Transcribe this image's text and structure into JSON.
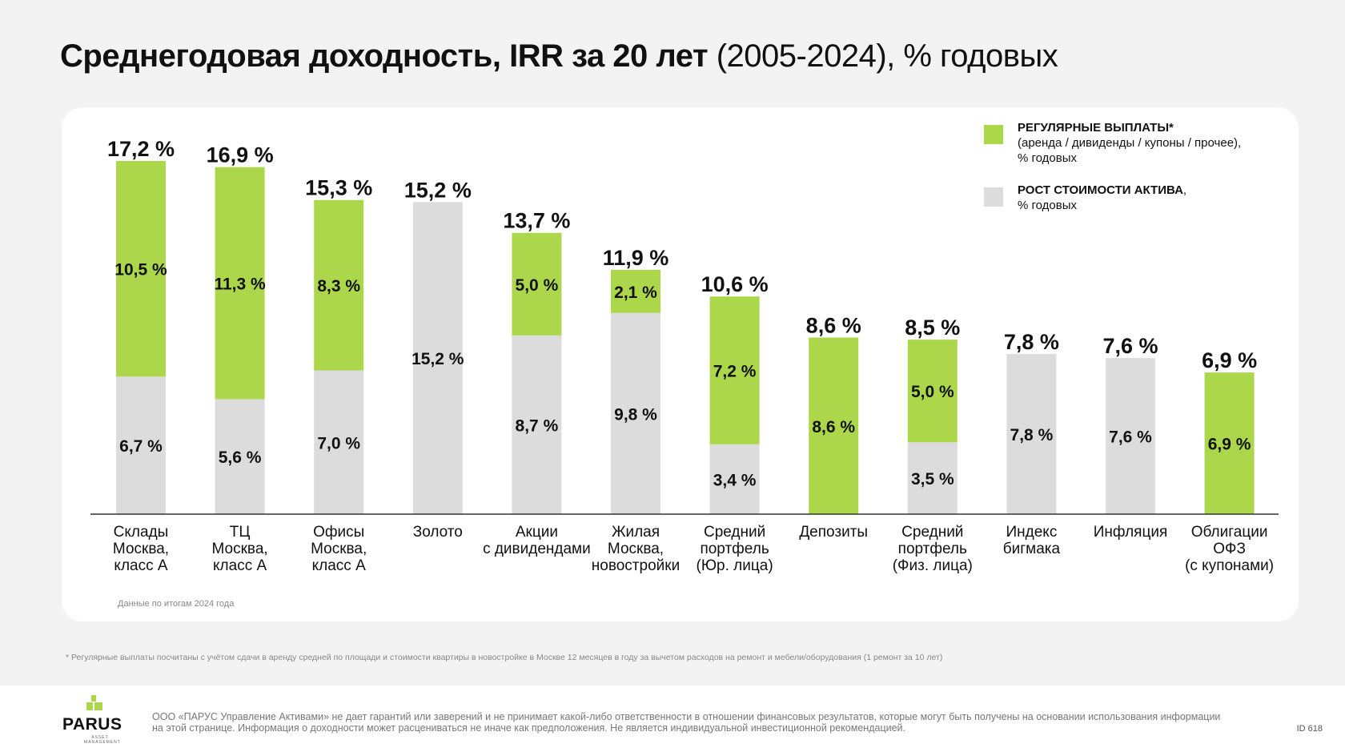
{
  "title": {
    "bold": "Среднегодовая доходность, IRR за 20 лет",
    "light": " (2005-2024), % годовых"
  },
  "legend": {
    "green_title": "РЕГУЛЯРНЫЕ ВЫПЛАТЫ*",
    "green_desc1": "(аренда / дивиденды / купоны / прочее),",
    "green_desc2": "% годовых",
    "gray_title": "РОСТ СТОИМОСТИ АКТИВА",
    "gray_suffix": ",",
    "gray_desc": "% годовых"
  },
  "colors": {
    "green": "#acd74b",
    "gray": "#dcdcdc",
    "axis": "#333333"
  },
  "source_note": "Данные по итогам 2024 года",
  "footnote": "* Регулярные выплаты посчитаны с учётом сдачи в аренду средней по площади и стоимости квартиры в новостройке в Москве 12 месяцев в году за вычетом расходов на ремонт и мебели/оборудования (1 ремонт за 10 лет)",
  "footer": {
    "logo_word": "PARUS",
    "logo_sub1": "ASSET",
    "logo_sub2": "MANAGEMENT",
    "disclaimer": "ООО «ПАРУС Управление Активами» не дает гарантий или заверений и не принимает какой-либо ответственности в отношении финансовых результатов, которые могут быть получены на основании использования информации на этой странице. Информация о доходности может расцениваться не иначе как предположения. Не является индивидуальной инвестиционной рекомендацией.",
    "page_id": "ID 618"
  },
  "chart_data": {
    "type": "bar",
    "stacked": true,
    "title": "Среднегодовая доходность, IRR за 20 лет (2005-2024), % годовых",
    "ylabel": "% годовых",
    "ylim": [
      0,
      17.2
    ],
    "categories": [
      [
        "Склады",
        "Москва,",
        "класс А"
      ],
      [
        "ТЦ",
        "Москва,",
        "класс А"
      ],
      [
        "Офисы",
        "Москва,",
        "класс А"
      ],
      [
        "Золото"
      ],
      [
        "Акции",
        "с дивидендами"
      ],
      [
        "Жилая",
        "Москва,",
        "новостройки"
      ],
      [
        "Средний",
        "портфель",
        "(Юр. лица)"
      ],
      [
        "Депозиты"
      ],
      [
        "Средний",
        "портфель",
        "(Физ. лица)"
      ],
      [
        "Индекс",
        "бигмака"
      ],
      [
        "Инфляция"
      ],
      [
        "Облигации",
        "ОФЗ",
        "(с купонами)"
      ]
    ],
    "series": [
      {
        "name": "РОСТ СТОИМОСТИ АКТИВА",
        "color": "#dcdcdc",
        "values": [
          6.7,
          5.6,
          7.0,
          15.2,
          8.7,
          9.8,
          3.4,
          0,
          3.5,
          7.8,
          7.6,
          0
        ],
        "labels": [
          "6,7 %",
          "5,6 %",
          "7,0 %",
          "15,2 %",
          "8,7 %",
          "9,8 %",
          "3,4 %",
          "",
          "3,5 %",
          "7,8 %",
          "7,6 %",
          ""
        ]
      },
      {
        "name": "РЕГУЛЯРНЫЕ ВЫПЛАТЫ",
        "color": "#acd74b",
        "values": [
          10.5,
          11.3,
          8.3,
          0,
          5.0,
          2.1,
          7.2,
          8.6,
          5.0,
          0,
          0,
          6.9
        ],
        "labels": [
          "10,5 %",
          "11,3 %",
          "8,3 %",
          "",
          "5,0 %",
          "2,1 %",
          "7,2 %",
          "8,6 %",
          "5,0 %",
          "",
          "",
          "6,9 %"
        ]
      }
    ],
    "totals": [
      17.2,
      16.9,
      15.3,
      15.2,
      13.7,
      11.9,
      10.6,
      8.6,
      8.5,
      7.8,
      7.6,
      6.9
    ],
    "total_labels": [
      "17,2 %",
      "16,9 %",
      "15,3 %",
      "15,2 %",
      "13,7 %",
      "11,9 %",
      "10,6 %",
      "8,6 %",
      "8,5 %",
      "7,8 %",
      "7,6 %",
      "6,9 %"
    ]
  }
}
